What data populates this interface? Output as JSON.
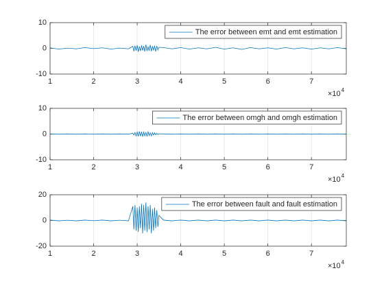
{
  "chart_data": [
    {
      "type": "line",
      "x": [
        10000,
        12000,
        14000,
        16000,
        18000,
        20000,
        22000,
        24000,
        26000,
        28000,
        29000,
        29250,
        29500,
        29750,
        30000,
        30250,
        30500,
        30750,
        31000,
        31250,
        31500,
        31750,
        32000,
        32250,
        32500,
        32750,
        33000,
        33250,
        33500,
        33750,
        34000,
        34250,
        34500,
        34750,
        35000,
        36000,
        38000,
        40000,
        42000,
        44000,
        46000,
        48000,
        50000,
        52000,
        54000,
        56000,
        58000,
        60000,
        62000,
        64000,
        66000,
        68000,
        70000,
        72000,
        74000,
        76000,
        78000
      ],
      "series": [
        {
          "name": "The error between emt and emt estimation",
          "color": "#0072bd",
          "values": [
            0.2,
            -0.3,
            0.1,
            -0.2,
            0.3,
            -0.1,
            0.2,
            -0.3,
            0.1,
            -0.2,
            0.8,
            -1.1,
            1.0,
            -0.9,
            1.2,
            -1.3,
            0.7,
            -1.0,
            1.1,
            -0.8,
            0.9,
            -1.2,
            1.4,
            -1.0,
            0.6,
            -0.9,
            1.3,
            -1.1,
            0.8,
            -0.7,
            1.0,
            -1.2,
            0.9,
            -0.6,
            0.4,
            0.3,
            -0.2,
            0.3,
            -0.3,
            0.2,
            -0.2,
            0.4,
            -0.3,
            0.2,
            -0.4,
            0.3,
            -0.2,
            0.2,
            -0.3,
            0.3,
            -0.2,
            0.2,
            -0.3,
            0.2,
            -0.2,
            0.3,
            -0.2
          ]
        }
      ],
      "xlim": [
        10000,
        78000
      ],
      "xticks": [
        {
          "value": 10000,
          "label": "1"
        },
        {
          "value": 20000,
          "label": "2"
        },
        {
          "value": 30000,
          "label": "3"
        },
        {
          "value": 40000,
          "label": "4"
        },
        {
          "value": 50000,
          "label": "5"
        },
        {
          "value": 60000,
          "label": "6"
        },
        {
          "value": 70000,
          "label": "7"
        }
      ],
      "ylim": [
        -10,
        10
      ],
      "yticks": [
        -10,
        0,
        10
      ],
      "grid": "x",
      "legend": "northeast",
      "x_exponent_base": "×10",
      "x_exponent": "4"
    },
    {
      "type": "line",
      "x": [
        10000,
        12000,
        14000,
        16000,
        18000,
        20000,
        22000,
        24000,
        26000,
        28000,
        29000,
        29250,
        29500,
        29750,
        30000,
        30250,
        30500,
        30750,
        31000,
        31250,
        31500,
        31750,
        32000,
        32250,
        32500,
        32750,
        33000,
        33250,
        33500,
        33750,
        34000,
        34250,
        34500,
        34750,
        35000,
        36000,
        38000,
        40000,
        42000,
        44000,
        46000,
        48000,
        50000,
        52000,
        54000,
        56000,
        58000,
        60000,
        62000,
        64000,
        66000,
        68000,
        70000,
        72000,
        74000,
        76000,
        78000
      ],
      "series": [
        {
          "name": "The error between omgh and omgh estimation",
          "color": "#0072bd",
          "values": [
            0.05,
            -0.05,
            0.05,
            -0.05,
            0.05,
            -0.05,
            0.05,
            -0.05,
            0.05,
            -0.05,
            0.3,
            -0.4,
            0.6,
            -0.7,
            0.8,
            -0.9,
            1.0,
            -0.8,
            0.9,
            -1.0,
            0.8,
            -0.7,
            0.6,
            -0.8,
            0.9,
            -0.6,
            0.5,
            -0.7,
            0.6,
            -0.4,
            0.5,
            -0.3,
            0.3,
            -0.2,
            0.1,
            0.05,
            -0.05,
            0.05,
            -0.05,
            0.05,
            -0.05,
            0.05,
            -0.05,
            0.05,
            -0.05,
            0.05,
            -0.05,
            0.05,
            -0.05,
            0.05,
            -0.05,
            0.05,
            -0.05,
            0.05,
            -0.05,
            0.05,
            -0.05
          ]
        }
      ],
      "xlim": [
        10000,
        78000
      ],
      "xticks": [
        {
          "value": 10000,
          "label": "1"
        },
        {
          "value": 20000,
          "label": "2"
        },
        {
          "value": 30000,
          "label": "3"
        },
        {
          "value": 40000,
          "label": "4"
        },
        {
          "value": 50000,
          "label": "5"
        },
        {
          "value": 60000,
          "label": "6"
        },
        {
          "value": 70000,
          "label": "7"
        }
      ],
      "ylim": [
        -10,
        10
      ],
      "yticks": [
        -10,
        0,
        10
      ],
      "grid": "x",
      "legend": "northeast",
      "x_exponent_base": "×10",
      "x_exponent": "4"
    },
    {
      "type": "line",
      "x": [
        10000,
        12000,
        14000,
        16000,
        18000,
        20000,
        22000,
        24000,
        26000,
        28000,
        29000,
        29250,
        29500,
        29750,
        30000,
        30250,
        30500,
        30750,
        31000,
        31250,
        31500,
        31750,
        32000,
        32250,
        32500,
        32750,
        33000,
        33250,
        33500,
        33750,
        34000,
        34250,
        34500,
        34750,
        35000,
        36000,
        38000,
        40000,
        42000,
        44000,
        46000,
        48000,
        50000,
        52000,
        54000,
        56000,
        58000,
        60000,
        62000,
        64000,
        66000,
        68000,
        70000,
        72000,
        74000,
        76000,
        78000
      ],
      "series": [
        {
          "name": "The error between fault and fault estimation",
          "color": "#0072bd",
          "values": [
            0.3,
            -0.3,
            0.2,
            -0.3,
            0.3,
            -0.2,
            0.3,
            -0.3,
            0.2,
            -0.3,
            11,
            -7,
            12,
            -8,
            10,
            -9,
            11,
            -6,
            13,
            -10,
            12,
            -8,
            14,
            -9,
            11,
            -7,
            12,
            -10,
            9,
            -8,
            10,
            -6,
            8,
            -5,
            4,
            0.3,
            -0.3,
            0.3,
            -0.3,
            0.3,
            -0.3,
            0.3,
            -0.3,
            0.3,
            -0.3,
            0.3,
            -0.3,
            0.3,
            -0.3,
            0.3,
            -0.3,
            0.3,
            -0.3,
            0.3,
            -0.3,
            0.3,
            -0.3
          ]
        }
      ],
      "xlim": [
        10000,
        78000
      ],
      "xticks": [
        {
          "value": 10000,
          "label": "1"
        },
        {
          "value": 20000,
          "label": "2"
        },
        {
          "value": 30000,
          "label": "3"
        },
        {
          "value": 40000,
          "label": "4"
        },
        {
          "value": 50000,
          "label": "5"
        },
        {
          "value": 60000,
          "label": "6"
        },
        {
          "value": 70000,
          "label": "7"
        }
      ],
      "ylim": [
        -20,
        20
      ],
      "yticks": [
        -20,
        0,
        20
      ],
      "grid": "x",
      "legend": "northeast",
      "x_exponent_base": "×10",
      "x_exponent": "4"
    }
  ]
}
